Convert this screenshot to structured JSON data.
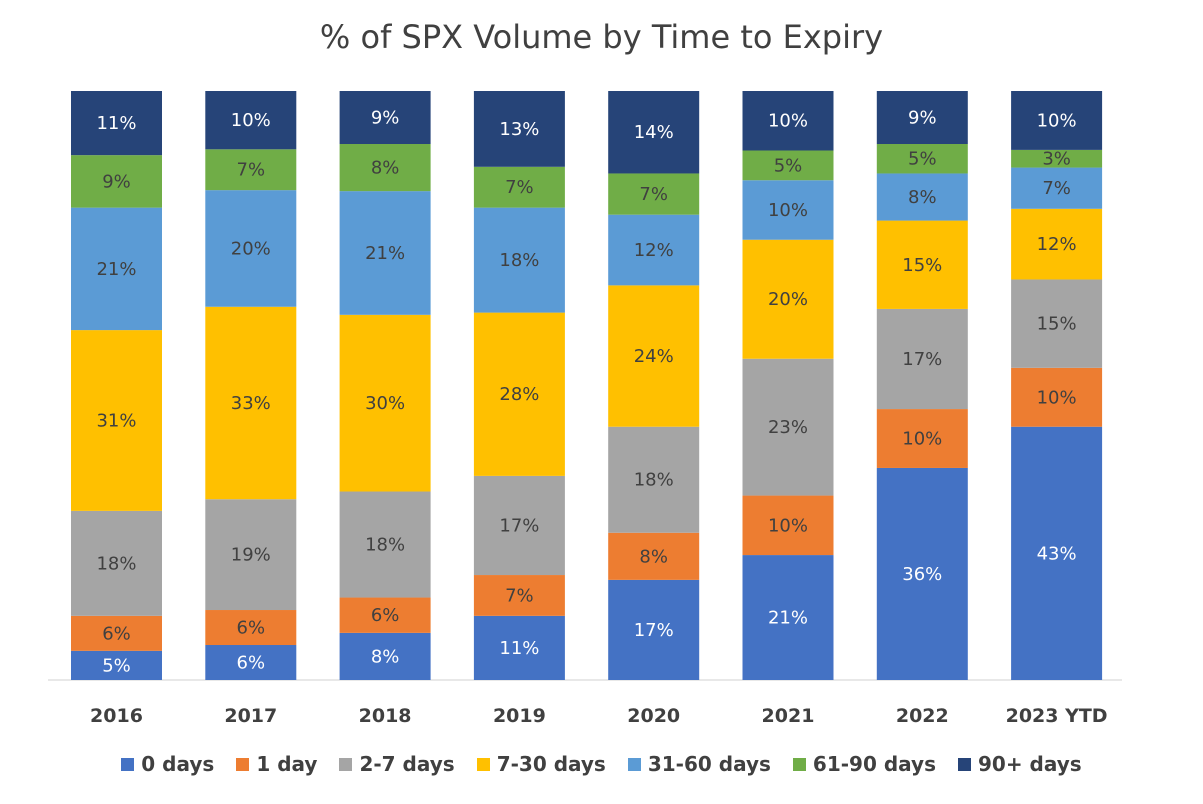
{
  "chart_data": {
    "type": "bar",
    "stacked": true,
    "title": "% of SPX Volume by Time to Expiry",
    "xlabel": "",
    "ylabel": "",
    "ylim": [
      0,
      100
    ],
    "grid": false,
    "legend_position": "bottom",
    "categories": [
      "2016",
      "2017",
      "2018",
      "2019",
      "2020",
      "2021",
      "2022",
      "2023 YTD"
    ],
    "series": [
      {
        "name": "0 days",
        "color": "#4472C4",
        "label_color": "#ffffff",
        "values": [
          5,
          6,
          8,
          11,
          17,
          21,
          36,
          43
        ]
      },
      {
        "name": "1 day",
        "color": "#ED7D31",
        "label_color": "#404040",
        "values": [
          6,
          6,
          6,
          7,
          8,
          10,
          10,
          10
        ]
      },
      {
        "name": "2-7 days",
        "color": "#A5A5A5",
        "label_color": "#404040",
        "values": [
          18,
          19,
          18,
          17,
          18,
          23,
          17,
          15
        ]
      },
      {
        "name": "7-30 days",
        "color": "#FFC000",
        "label_color": "#404040",
        "values": [
          31,
          33,
          30,
          28,
          24,
          20,
          15,
          12
        ]
      },
      {
        "name": "31-60 days",
        "color": "#5B9BD5",
        "label_color": "#404040",
        "values": [
          21,
          20,
          21,
          18,
          12,
          10,
          8,
          7
        ]
      },
      {
        "name": "61-90 days",
        "color": "#70AD47",
        "label_color": "#404040",
        "values": [
          9,
          7,
          8,
          7,
          7,
          5,
          5,
          3
        ]
      },
      {
        "name": "90+ days",
        "color": "#264478",
        "label_color": "#ffffff",
        "values": [
          11,
          10,
          9,
          13,
          14,
          10,
          9,
          10
        ]
      }
    ],
    "data_labels": [
      [
        "5%",
        "6%",
        "8%",
        "11%",
        "17%",
        "21%",
        "36%",
        "43%"
      ],
      [
        "6%",
        "6%",
        "6%",
        "7%",
        "8%",
        "10%",
        "10%",
        "10%"
      ],
      [
        "18%",
        "19%",
        "18%",
        "17%",
        "18%",
        "23%",
        "17%",
        "15%"
      ],
      [
        "31%",
        "33%",
        "30%",
        "28%",
        "24%",
        "20%",
        "15%",
        "12%"
      ],
      [
        "21%",
        "20%",
        "21%",
        "18%",
        "12%",
        "10%",
        "8%",
        "7%"
      ],
      [
        "9%",
        "7%",
        "8%",
        "7%",
        "7%",
        "5%",
        "5%",
        "3%"
      ],
      [
        "11%",
        "10%",
        "9%",
        "13%",
        "14%",
        "10%",
        "9%",
        "10%"
      ]
    ]
  }
}
